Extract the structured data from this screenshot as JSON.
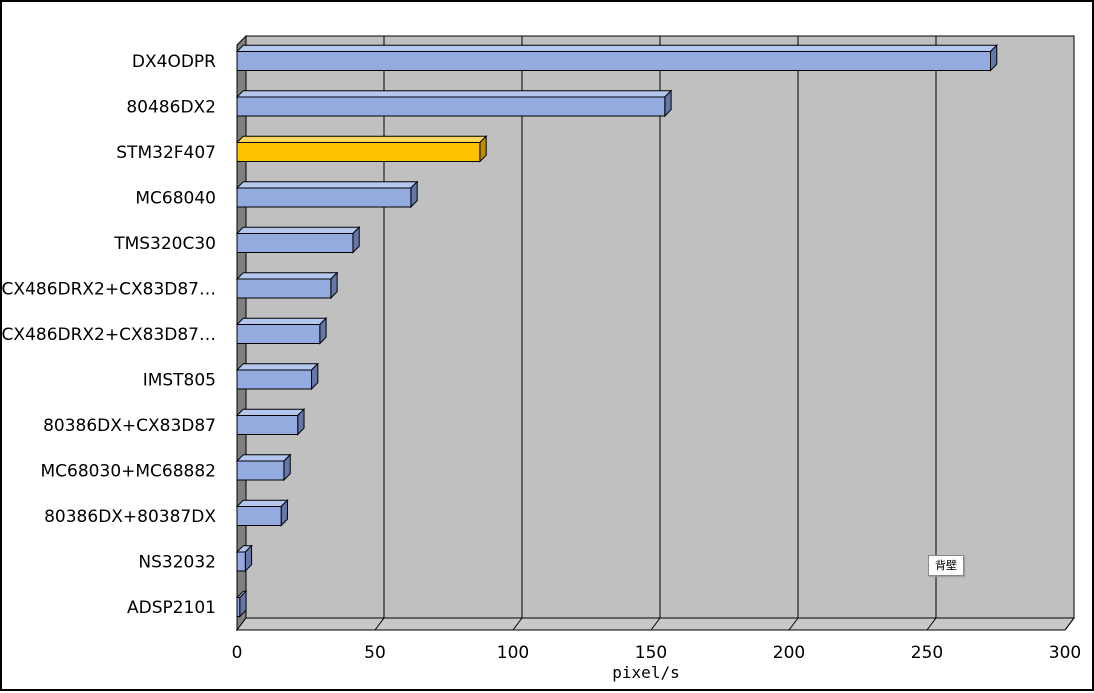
{
  "chart_data": {
    "type": "bar",
    "orientation": "horizontal",
    "style": "3d",
    "categories": [
      "DX4ODPR",
      "80486DX2",
      "STM32F407",
      "MC68040",
      "TMS320C30",
      "CX486DRX2+CX83D87…",
      "CX486DRX2+CX83D87…",
      "IMST805",
      "80386DX+CX83D87",
      "MC68030+MC68882",
      "80386DX+80387DX",
      "NS32032",
      "ADSP2101"
    ],
    "values": [
      273,
      155,
      88,
      63,
      42,
      34,
      30,
      27,
      22,
      17,
      16,
      3,
      1
    ],
    "highlight_index": 2,
    "xlabel": "pixel/s",
    "ylabel": "",
    "xlim": [
      0,
      300
    ],
    "xticks": [
      0,
      50,
      100,
      150,
      200,
      250,
      300
    ],
    "grid": true,
    "legend": "none",
    "colors": {
      "bar": "#94ABE0",
      "bar_top": "#B4C7EF",
      "bar_side": "#6577A8",
      "highlight": "#FFC000",
      "highlight_top": "#FFD65C",
      "highlight_side": "#C08A00",
      "back_wall": "#C0C0C0",
      "floor": "#C8C8C8",
      "side_wall": "#808080"
    }
  },
  "tooltip": {
    "text": "背壁"
  }
}
